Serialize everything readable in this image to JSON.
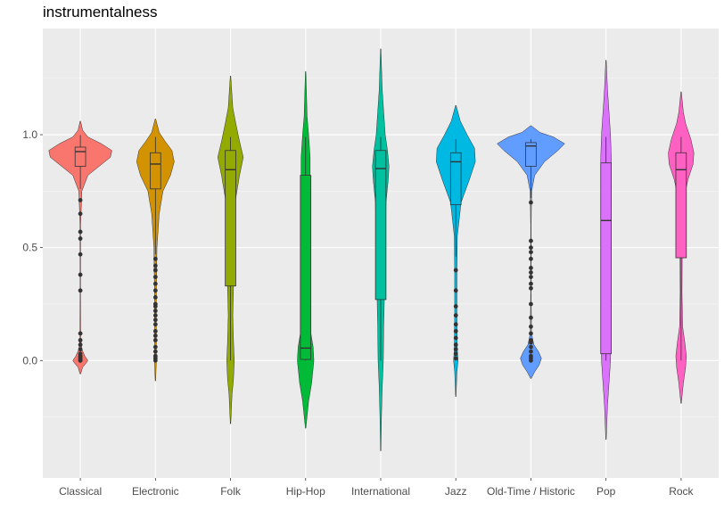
{
  "chart_data": {
    "type": "violin",
    "title": "instrumentalness",
    "xlabel": "",
    "ylabel": "",
    "ylim": [
      -0.52,
      1.47
    ],
    "y_ticks": [
      0.0,
      0.5,
      1.0
    ],
    "y_tick_labels": [
      "0.0",
      "0.5",
      "1.0"
    ],
    "grid": true,
    "legend": "none",
    "categories": [
      "Classical",
      "Electronic",
      "Folk",
      "Hip-Hop",
      "International",
      "Jazz",
      "Old-Time / Historic",
      "Pop",
      "Rock"
    ],
    "colors": [
      "#F8766D",
      "#D39200",
      "#93AA00",
      "#00BA38",
      "#00C19F",
      "#00B9E3",
      "#619CFF",
      "#DB72FB",
      "#FF61C3"
    ],
    "violins": [
      {
        "ymin": -0.06,
        "ymax": 1.06,
        "profile": [
          [
            -0.06,
            0.003
          ],
          [
            -0.03,
            0.03
          ],
          [
            -0.01,
            0.08
          ],
          [
            0.0,
            0.1
          ],
          [
            0.02,
            0.06
          ],
          [
            0.05,
            0.02
          ],
          [
            0.1,
            0.005
          ],
          [
            0.3,
            0.003
          ],
          [
            0.6,
            0.004
          ],
          [
            0.75,
            0.02
          ],
          [
            0.82,
            0.1
          ],
          [
            0.86,
            0.25
          ],
          [
            0.9,
            0.4
          ],
          [
            0.93,
            0.42
          ],
          [
            0.96,
            0.28
          ],
          [
            0.99,
            0.1
          ],
          [
            1.02,
            0.03
          ],
          [
            1.06,
            0.003
          ]
        ]
      },
      {
        "ymin": -0.09,
        "ymax": 1.07,
        "profile": [
          [
            -0.09,
            0.003
          ],
          [
            -0.02,
            0.01
          ],
          [
            0.02,
            0.012
          ],
          [
            0.1,
            0.01
          ],
          [
            0.3,
            0.012
          ],
          [
            0.5,
            0.02
          ],
          [
            0.65,
            0.05
          ],
          [
            0.75,
            0.1
          ],
          [
            0.82,
            0.2
          ],
          [
            0.88,
            0.25
          ],
          [
            0.93,
            0.22
          ],
          [
            0.97,
            0.13
          ],
          [
            1.01,
            0.05
          ],
          [
            1.07,
            0.003
          ]
        ]
      },
      {
        "ymin": -0.28,
        "ymax": 1.26,
        "profile": [
          [
            -0.28,
            0.003
          ],
          [
            -0.15,
            0.02
          ],
          [
            -0.08,
            0.04
          ],
          [
            0.0,
            0.05
          ],
          [
            0.08,
            0.04
          ],
          [
            0.2,
            0.03
          ],
          [
            0.33,
            0.04
          ],
          [
            0.5,
            0.04
          ],
          [
            0.7,
            0.06
          ],
          [
            0.82,
            0.12
          ],
          [
            0.9,
            0.17
          ],
          [
            0.97,
            0.12
          ],
          [
            1.05,
            0.07
          ],
          [
            1.12,
            0.03
          ],
          [
            1.26,
            0.003
          ]
        ]
      },
      {
        "ymin": -0.3,
        "ymax": 1.28,
        "profile": [
          [
            -0.3,
            0.003
          ],
          [
            -0.18,
            0.04
          ],
          [
            -0.1,
            0.08
          ],
          [
            0.0,
            0.11
          ],
          [
            0.06,
            0.1
          ],
          [
            0.12,
            0.07
          ],
          [
            0.25,
            0.05
          ],
          [
            0.5,
            0.05
          ],
          [
            0.7,
            0.05
          ],
          [
            0.82,
            0.06
          ],
          [
            0.9,
            0.06
          ],
          [
            1.0,
            0.04
          ],
          [
            1.08,
            0.02
          ],
          [
            1.28,
            0.003
          ]
        ]
      },
      {
        "ymin": -0.4,
        "ymax": 1.38,
        "profile": [
          [
            -0.4,
            0.003
          ],
          [
            -0.25,
            0.01
          ],
          [
            -0.12,
            0.02
          ],
          [
            0.0,
            0.035
          ],
          [
            0.15,
            0.04
          ],
          [
            0.3,
            0.05
          ],
          [
            0.5,
            0.06
          ],
          [
            0.7,
            0.07
          ],
          [
            0.8,
            0.1
          ],
          [
            0.86,
            0.11
          ],
          [
            0.93,
            0.09
          ],
          [
            1.0,
            0.06
          ],
          [
            1.1,
            0.04
          ],
          [
            1.2,
            0.02
          ],
          [
            1.38,
            0.003
          ]
        ]
      },
      {
        "ymin": -0.16,
        "ymax": 1.13,
        "profile": [
          [
            -0.16,
            0.003
          ],
          [
            -0.05,
            0.015
          ],
          [
            0.0,
            0.03
          ],
          [
            0.05,
            0.02
          ],
          [
            0.2,
            0.015
          ],
          [
            0.4,
            0.015
          ],
          [
            0.55,
            0.02
          ],
          [
            0.7,
            0.07
          ],
          [
            0.8,
            0.18
          ],
          [
            0.88,
            0.26
          ],
          [
            0.94,
            0.25
          ],
          [
            1.0,
            0.15
          ],
          [
            1.06,
            0.06
          ],
          [
            1.13,
            0.003
          ]
        ]
      },
      {
        "ymin": -0.08,
        "ymax": 1.04,
        "profile": [
          [
            -0.08,
            0.003
          ],
          [
            -0.05,
            0.05
          ],
          [
            -0.02,
            0.11
          ],
          [
            0.01,
            0.14
          ],
          [
            0.04,
            0.1
          ],
          [
            0.07,
            0.04
          ],
          [
            0.12,
            0.008
          ],
          [
            0.3,
            0.003
          ],
          [
            0.6,
            0.003
          ],
          [
            0.75,
            0.01
          ],
          [
            0.82,
            0.05
          ],
          [
            0.88,
            0.18
          ],
          [
            0.93,
            0.36
          ],
          [
            0.96,
            0.45
          ],
          [
            0.99,
            0.3
          ],
          [
            1.01,
            0.12
          ],
          [
            1.04,
            0.003
          ]
        ]
      },
      {
        "ymin": -0.35,
        "ymax": 1.33,
        "profile": [
          [
            -0.35,
            0.003
          ],
          [
            -0.2,
            0.02
          ],
          [
            -0.1,
            0.04
          ],
          [
            0.0,
            0.06
          ],
          [
            0.1,
            0.065
          ],
          [
            0.2,
            0.065
          ],
          [
            0.35,
            0.065
          ],
          [
            0.5,
            0.065
          ],
          [
            0.65,
            0.065
          ],
          [
            0.75,
            0.07
          ],
          [
            0.82,
            0.07
          ],
          [
            0.9,
            0.07
          ],
          [
            1.0,
            0.06
          ],
          [
            1.1,
            0.04
          ],
          [
            1.2,
            0.02
          ],
          [
            1.33,
            0.003
          ]
        ]
      },
      {
        "ymin": -0.19,
        "ymax": 1.19,
        "profile": [
          [
            -0.19,
            0.003
          ],
          [
            -0.1,
            0.03
          ],
          [
            -0.03,
            0.06
          ],
          [
            0.02,
            0.07
          ],
          [
            0.08,
            0.05
          ],
          [
            0.15,
            0.02
          ],
          [
            0.3,
            0.012
          ],
          [
            0.5,
            0.015
          ],
          [
            0.7,
            0.03
          ],
          [
            0.8,
            0.09
          ],
          [
            0.87,
            0.16
          ],
          [
            0.92,
            0.17
          ],
          [
            0.98,
            0.13
          ],
          [
            1.05,
            0.06
          ],
          [
            1.1,
            0.03
          ],
          [
            1.19,
            0.003
          ]
        ]
      }
    ],
    "boxes": [
      {
        "q1": 0.86,
        "median": 0.925,
        "q3": 0.945,
        "whisker_low": 0.76,
        "whisker_high": 0.998,
        "outliers": [
          0.71,
          0.65,
          0.57,
          0.54,
          0.47,
          0.38,
          0.31,
          0.12,
          0.09,
          0.07,
          0.05,
          0.03,
          0.02,
          0.01,
          0.0,
          0.0,
          0.005,
          0.015
        ]
      },
      {
        "q1": 0.76,
        "median": 0.87,
        "q3": 0.92,
        "whisker_low": 0.47,
        "whisker_high": 0.99,
        "outliers": [
          0.45,
          0.42,
          0.4,
          0.37,
          0.34,
          0.31,
          0.28,
          0.25,
          0.24,
          0.22,
          0.2,
          0.18,
          0.16,
          0.13,
          0.11,
          0.09,
          0.06,
          0.04,
          0.02,
          0.01,
          0.0
        ]
      },
      {
        "q1": 0.33,
        "median": 0.845,
        "q3": 0.93,
        "whisker_low": 0.0,
        "whisker_high": 0.99,
        "outliers": []
      },
      {
        "q1": 0.005,
        "median": 0.055,
        "q3": 0.82,
        "whisker_low": 0.0,
        "whisker_high": 0.99,
        "outliers": []
      },
      {
        "q1": 0.27,
        "median": 0.85,
        "q3": 0.93,
        "whisker_low": 0.0,
        "whisker_high": 0.99,
        "outliers": []
      },
      {
        "q1": 0.69,
        "median": 0.88,
        "q3": 0.92,
        "whisker_low": 0.46,
        "whisker_high": 0.98,
        "outliers": [
          0.4,
          0.31,
          0.24,
          0.2,
          0.16,
          0.13,
          0.1,
          0.07,
          0.05,
          0.03,
          0.01
        ]
      },
      {
        "q1": 0.86,
        "median": 0.95,
        "q3": 0.965,
        "whisker_low": 0.72,
        "whisker_high": 0.98,
        "outliers": [
          0.7,
          0.53,
          0.5,
          0.48,
          0.45,
          0.41,
          0.39,
          0.37,
          0.34,
          0.32,
          0.25,
          0.19,
          0.15,
          0.12,
          0.09,
          0.08,
          0.06,
          0.04,
          0.02,
          0.01,
          0.0
        ]
      },
      {
        "q1": 0.03,
        "median": 0.62,
        "q3": 0.875,
        "whisker_low": 0.0,
        "whisker_high": 0.99,
        "outliers": []
      },
      {
        "q1": 0.455,
        "median": 0.845,
        "q3": 0.92,
        "whisker_low": 0.0,
        "whisker_high": 0.99,
        "outliers": []
      }
    ]
  }
}
